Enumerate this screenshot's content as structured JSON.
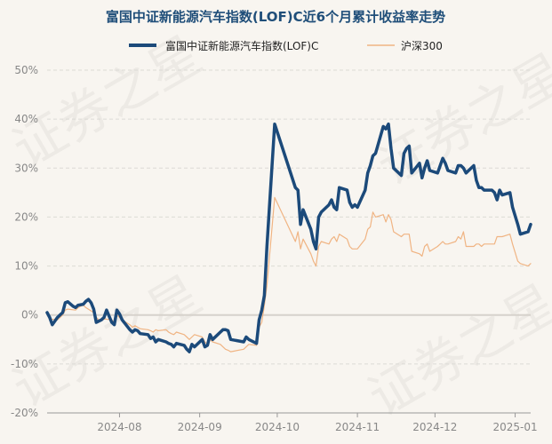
{
  "chart_data": {
    "type": "line",
    "title": "富国中证新能源汽车指数(LOF)C近6个月累计收益率走势",
    "watermark": "证券之星",
    "legend_position": "top-center",
    "grid": true,
    "y_unit": "%",
    "ylim": [
      -20,
      50
    ],
    "yticks": [
      -20,
      -10,
      0,
      10,
      20,
      30,
      40,
      50
    ],
    "y_tick_labels": [
      "-20%",
      "-10%",
      "0%",
      "10%",
      "20%",
      "30%",
      "40%",
      "50%"
    ],
    "xlim": [
      "2024-07-04",
      "2025-01-07"
    ],
    "x_ticks": [
      {
        "date": "2024-08-01",
        "label": "2024-08"
      },
      {
        "date": "2024-09-01",
        "label": "2024-09"
      },
      {
        "date": "2024-10-01",
        "label": "2024-10"
      },
      {
        "date": "2024-11-01",
        "label": "2024-11"
      },
      {
        "date": "2024-12-01",
        "label": "2024-12"
      },
      {
        "date": "2025-01-01",
        "label": "2025-01"
      }
    ],
    "colors": {
      "fund": "#1c4a7a",
      "index": "#f0b483"
    },
    "series": [
      {
        "name": "富国中证新能源汽车指数(LOF)C",
        "color": "#1c4a7a",
        "points": [
          [
            "2024-07-04",
            0.5
          ],
          [
            "2024-07-05",
            -0.5
          ],
          [
            "2024-07-06",
            -2.0
          ],
          [
            "2024-07-08",
            -0.5
          ],
          [
            "2024-07-09",
            0.0
          ],
          [
            "2024-07-10",
            0.5
          ],
          [
            "2024-07-11",
            2.5
          ],
          [
            "2024-07-12",
            2.7
          ],
          [
            "2024-07-14",
            1.8
          ],
          [
            "2024-07-15",
            1.5
          ],
          [
            "2024-07-16",
            2.0
          ],
          [
            "2024-07-18",
            2.2
          ],
          [
            "2024-07-19",
            2.8
          ],
          [
            "2024-07-20",
            3.2
          ],
          [
            "2024-07-21",
            2.5
          ],
          [
            "2024-07-22",
            1.2
          ],
          [
            "2024-07-23",
            -1.5
          ],
          [
            "2024-07-25",
            -1.0
          ],
          [
            "2024-07-26",
            -0.5
          ],
          [
            "2024-07-27",
            1.0
          ],
          [
            "2024-07-29",
            -1.5
          ],
          [
            "2024-07-30",
            -2.0
          ],
          [
            "2024-07-31",
            1.0
          ],
          [
            "2024-08-01",
            0.2
          ],
          [
            "2024-08-02",
            -1.0
          ],
          [
            "2024-08-05",
            -3.0
          ],
          [
            "2024-08-06",
            -3.5
          ],
          [
            "2024-08-07",
            -3.0
          ],
          [
            "2024-08-08",
            -3.2
          ],
          [
            "2024-08-09",
            -3.8
          ],
          [
            "2024-08-12",
            -4.0
          ],
          [
            "2024-08-13",
            -4.8
          ],
          [
            "2024-08-14",
            -4.5
          ],
          [
            "2024-08-15",
            -5.5
          ],
          [
            "2024-08-16",
            -5.0
          ],
          [
            "2024-08-19",
            -5.5
          ],
          [
            "2024-08-20",
            -5.8
          ],
          [
            "2024-08-21",
            -6.0
          ],
          [
            "2024-08-22",
            -6.5
          ],
          [
            "2024-08-23",
            -5.8
          ],
          [
            "2024-08-26",
            -6.2
          ],
          [
            "2024-08-27",
            -7.0
          ],
          [
            "2024-08-28",
            -7.5
          ],
          [
            "2024-08-29",
            -6.0
          ],
          [
            "2024-08-30",
            -6.5
          ],
          [
            "2024-09-02",
            -5.0
          ],
          [
            "2024-09-03",
            -6.5
          ],
          [
            "2024-09-04",
            -6.2
          ],
          [
            "2024-09-05",
            -4.0
          ],
          [
            "2024-09-06",
            -5.0
          ],
          [
            "2024-09-09",
            -3.5
          ],
          [
            "2024-09-10",
            -3.0
          ],
          [
            "2024-09-11",
            -3.0
          ],
          [
            "2024-09-12",
            -3.2
          ],
          [
            "2024-09-13",
            -5.0
          ],
          [
            "2024-09-18",
            -5.5
          ],
          [
            "2024-09-19",
            -4.5
          ],
          [
            "2024-09-20",
            -5.0
          ],
          [
            "2024-09-23",
            -5.8
          ],
          [
            "2024-09-24",
            -1.0
          ],
          [
            "2024-09-25",
            1.0
          ],
          [
            "2024-09-26",
            4.0
          ],
          [
            "2024-09-27",
            14.0
          ],
          [
            "2024-09-30",
            39.0
          ],
          [
            "2024-10-08",
            26.0
          ],
          [
            "2024-10-09",
            25.5
          ],
          [
            "2024-10-10",
            18.5
          ],
          [
            "2024-10-11",
            21.5
          ],
          [
            "2024-10-14",
            17.5
          ],
          [
            "2024-10-15",
            15.0
          ],
          [
            "2024-10-16",
            13.5
          ],
          [
            "2024-10-17",
            20.0
          ],
          [
            "2024-10-18",
            21.0
          ],
          [
            "2024-10-21",
            22.5
          ],
          [
            "2024-10-22",
            23.5
          ],
          [
            "2024-10-23",
            22.0
          ],
          [
            "2024-10-24",
            21.5
          ],
          [
            "2024-10-25",
            26.0
          ],
          [
            "2024-10-28",
            25.5
          ],
          [
            "2024-10-29",
            23.0
          ],
          [
            "2024-10-30",
            22.0
          ],
          [
            "2024-10-31",
            22.5
          ],
          [
            "2024-11-01",
            22.0
          ],
          [
            "2024-11-04",
            25.5
          ],
          [
            "2024-11-05",
            29.0
          ],
          [
            "2024-11-06",
            30.5
          ],
          [
            "2024-11-07",
            32.5
          ],
          [
            "2024-11-08",
            33.0
          ],
          [
            "2024-11-11",
            38.5
          ],
          [
            "2024-11-12",
            38.0
          ],
          [
            "2024-11-13",
            39.0
          ],
          [
            "2024-11-14",
            34.0
          ],
          [
            "2024-11-15",
            30.0
          ],
          [
            "2024-11-18",
            28.5
          ],
          [
            "2024-11-19",
            33.0
          ],
          [
            "2024-11-20",
            34.0
          ],
          [
            "2024-11-21",
            34.5
          ],
          [
            "2024-11-22",
            29.0
          ],
          [
            "2024-11-25",
            31.0
          ],
          [
            "2024-11-26",
            28.0
          ],
          [
            "2024-11-27",
            30.0
          ],
          [
            "2024-11-28",
            31.5
          ],
          [
            "2024-11-29",
            29.5
          ],
          [
            "2024-12-02",
            29.0
          ],
          [
            "2024-12-03",
            30.5
          ],
          [
            "2024-12-04",
            32.0
          ],
          [
            "2024-12-05",
            31.0
          ],
          [
            "2024-12-06",
            29.5
          ],
          [
            "2024-12-09",
            29.0
          ],
          [
            "2024-12-10",
            30.5
          ],
          [
            "2024-12-11",
            30.5
          ],
          [
            "2024-12-12",
            30.0
          ],
          [
            "2024-12-13",
            29.0
          ],
          [
            "2024-12-16",
            30.5
          ],
          [
            "2024-12-17",
            27.5
          ],
          [
            "2024-12-18",
            26.0
          ],
          [
            "2024-12-19",
            26.0
          ],
          [
            "2024-12-20",
            25.5
          ],
          [
            "2024-12-23",
            25.5
          ],
          [
            "2024-12-24",
            25.0
          ],
          [
            "2024-12-25",
            23.5
          ],
          [
            "2024-12-26",
            25.5
          ],
          [
            "2024-12-27",
            24.5
          ],
          [
            "2024-12-30",
            25.0
          ],
          [
            "2024-12-31",
            22.0
          ],
          [
            "2025-01-02",
            18.5
          ],
          [
            "2025-01-03",
            16.5
          ],
          [
            "2025-01-06",
            17.0
          ],
          [
            "2025-01-07",
            18.5
          ]
        ]
      },
      {
        "name": "沪深300",
        "color": "#f0b483",
        "points": [
          [
            "2024-07-04",
            0.0
          ],
          [
            "2024-07-05",
            -0.8
          ],
          [
            "2024-07-08",
            -1.0
          ],
          [
            "2024-07-09",
            -0.5
          ],
          [
            "2024-07-10",
            0.0
          ],
          [
            "2024-07-11",
            1.0
          ],
          [
            "2024-07-12",
            1.2
          ],
          [
            "2024-07-15",
            1.0
          ],
          [
            "2024-07-16",
            1.5
          ],
          [
            "2024-07-17",
            1.8
          ],
          [
            "2024-07-18",
            2.0
          ],
          [
            "2024-07-19",
            1.5
          ],
          [
            "2024-07-22",
            0.5
          ],
          [
            "2024-07-23",
            -0.5
          ],
          [
            "2024-07-24",
            -1.0
          ],
          [
            "2024-07-25",
            -1.2
          ],
          [
            "2024-07-26",
            -0.8
          ],
          [
            "2024-07-29",
            -1.0
          ],
          [
            "2024-07-30",
            -1.5
          ],
          [
            "2024-07-31",
            0.0
          ],
          [
            "2024-08-01",
            -0.5
          ],
          [
            "2024-08-02",
            -1.0
          ],
          [
            "2024-08-05",
            -2.0
          ],
          [
            "2024-08-06",
            -2.5
          ],
          [
            "2024-08-07",
            -2.2
          ],
          [
            "2024-08-08",
            -2.5
          ],
          [
            "2024-08-09",
            -2.8
          ],
          [
            "2024-08-12",
            -3.0
          ],
          [
            "2024-08-13",
            -3.2
          ],
          [
            "2024-08-14",
            -3.5
          ],
          [
            "2024-08-15",
            -3.0
          ],
          [
            "2024-08-16",
            -3.2
          ],
          [
            "2024-08-19",
            -3.0
          ],
          [
            "2024-08-20",
            -3.5
          ],
          [
            "2024-08-21",
            -3.8
          ],
          [
            "2024-08-22",
            -4.0
          ],
          [
            "2024-08-23",
            -3.5
          ],
          [
            "2024-08-26",
            -4.0
          ],
          [
            "2024-08-27",
            -4.5
          ],
          [
            "2024-08-28",
            -5.0
          ],
          [
            "2024-08-29",
            -4.5
          ],
          [
            "2024-08-30",
            -4.0
          ],
          [
            "2024-09-02",
            -4.5
          ],
          [
            "2024-09-03",
            -5.5
          ],
          [
            "2024-09-04",
            -6.0
          ],
          [
            "2024-09-05",
            -5.0
          ],
          [
            "2024-09-06",
            -5.5
          ],
          [
            "2024-09-09",
            -6.0
          ],
          [
            "2024-09-10",
            -6.5
          ],
          [
            "2024-09-11",
            -7.0
          ],
          [
            "2024-09-12",
            -7.2
          ],
          [
            "2024-09-13",
            -7.5
          ],
          [
            "2024-09-18",
            -7.0
          ],
          [
            "2024-09-19",
            -6.5
          ],
          [
            "2024-09-20",
            -6.0
          ],
          [
            "2024-09-23",
            -6.2
          ],
          [
            "2024-09-24",
            -2.5
          ],
          [
            "2024-09-25",
            -1.5
          ],
          [
            "2024-09-26",
            2.0
          ],
          [
            "2024-09-27",
            6.0
          ],
          [
            "2024-09-30",
            24.0
          ],
          [
            "2024-10-08",
            15.0
          ],
          [
            "2024-10-09",
            17.0
          ],
          [
            "2024-10-10",
            13.5
          ],
          [
            "2024-10-11",
            15.5
          ],
          [
            "2024-10-14",
            12.5
          ],
          [
            "2024-10-15",
            11.0
          ],
          [
            "2024-10-16",
            10.0
          ],
          [
            "2024-10-17",
            14.0
          ],
          [
            "2024-10-18",
            15.0
          ],
          [
            "2024-10-21",
            14.5
          ],
          [
            "2024-10-22",
            15.5
          ],
          [
            "2024-10-23",
            16.0
          ],
          [
            "2024-10-24",
            15.0
          ],
          [
            "2024-10-25",
            16.5
          ],
          [
            "2024-10-28",
            15.5
          ],
          [
            "2024-10-29",
            14.0
          ],
          [
            "2024-10-30",
            13.5
          ],
          [
            "2024-10-31",
            13.5
          ],
          [
            "2024-11-01",
            13.5
          ],
          [
            "2024-11-04",
            15.5
          ],
          [
            "2024-11-05",
            17.5
          ],
          [
            "2024-11-06",
            18.0
          ],
          [
            "2024-11-07",
            21.0
          ],
          [
            "2024-11-08",
            20.0
          ],
          [
            "2024-11-11",
            20.5
          ],
          [
            "2024-11-12",
            19.0
          ],
          [
            "2024-11-13",
            20.5
          ],
          [
            "2024-11-14",
            19.5
          ],
          [
            "2024-11-15",
            17.0
          ],
          [
            "2024-11-18",
            16.0
          ],
          [
            "2024-11-19",
            16.5
          ],
          [
            "2024-11-20",
            16.5
          ],
          [
            "2024-11-21",
            16.5
          ],
          [
            "2024-11-22",
            13.0
          ],
          [
            "2024-11-25",
            12.5
          ],
          [
            "2024-11-26",
            12.0
          ],
          [
            "2024-11-27",
            14.0
          ],
          [
            "2024-11-28",
            14.5
          ],
          [
            "2024-11-29",
            13.0
          ],
          [
            "2024-12-02",
            14.0
          ],
          [
            "2024-12-03",
            14.5
          ],
          [
            "2024-12-04",
            15.0
          ],
          [
            "2024-12-05",
            14.5
          ],
          [
            "2024-12-06",
            14.5
          ],
          [
            "2024-12-09",
            15.0
          ],
          [
            "2024-12-10",
            16.0
          ],
          [
            "2024-12-11",
            15.5
          ],
          [
            "2024-12-12",
            17.0
          ],
          [
            "2024-12-13",
            14.0
          ],
          [
            "2024-12-16",
            14.0
          ],
          [
            "2024-12-17",
            14.5
          ],
          [
            "2024-12-18",
            14.5
          ],
          [
            "2024-12-19",
            14.0
          ],
          [
            "2024-12-20",
            14.5
          ],
          [
            "2024-12-23",
            14.5
          ],
          [
            "2024-12-24",
            14.5
          ],
          [
            "2024-12-25",
            16.0
          ],
          [
            "2024-12-26",
            16.0
          ],
          [
            "2024-12-27",
            16.0
          ],
          [
            "2024-12-30",
            16.5
          ],
          [
            "2024-12-31",
            14.5
          ],
          [
            "2025-01-02",
            11.0
          ],
          [
            "2025-01-03",
            10.5
          ],
          [
            "2025-01-06",
            10.0
          ],
          [
            "2025-01-07",
            10.5
          ]
        ]
      }
    ]
  }
}
